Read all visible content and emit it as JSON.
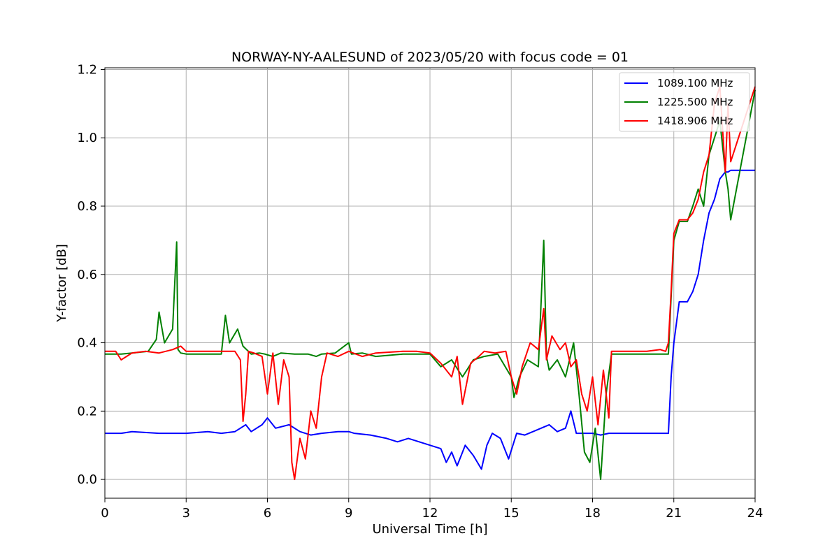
{
  "chart_data": {
    "type": "line",
    "title": "NORWAY-NY-AALESUND of 2023/05/20 with focus code = 01",
    "xlabel": "Universal Time [h]",
    "ylabel": "Y-factor [dB]",
    "xlim": [
      0,
      24
    ],
    "ylim": [
      -0.055,
      1.205
    ],
    "xticks": [
      0,
      3,
      6,
      9,
      12,
      15,
      18,
      21,
      24
    ],
    "yticks": [
      0.0,
      0.2,
      0.4,
      0.6,
      0.8,
      1.0,
      1.2
    ],
    "ytick_labels": [
      "0.0",
      "0.2",
      "0.4",
      "0.6",
      "0.8",
      "1.0",
      "1.2"
    ],
    "grid": true,
    "legend_position": "top-right",
    "series": [
      {
        "name": "1089.100 MHz",
        "color": "#0000ff",
        "x": [
          0.0,
          0.6,
          1.0,
          2.0,
          3.0,
          3.8,
          4.3,
          4.8,
          5.0,
          5.2,
          5.4,
          5.8,
          6.0,
          6.3,
          6.8,
          7.2,
          7.6,
          8.0,
          8.6,
          9.0,
          9.2,
          9.8,
          10.4,
          10.8,
          11.2,
          11.6,
          12.0,
          12.4,
          12.6,
          12.8,
          13.0,
          13.3,
          13.6,
          13.9,
          14.1,
          14.3,
          14.6,
          14.9,
          15.2,
          15.5,
          15.8,
          16.1,
          16.4,
          16.7,
          17.0,
          17.2,
          17.4,
          17.6,
          17.8,
          18.0,
          18.3,
          18.6,
          18.8,
          19.5,
          20.0,
          20.5,
          20.8,
          20.9,
          21.0,
          21.2,
          21.5,
          21.7,
          21.9,
          22.1,
          22.3,
          22.5,
          22.7,
          22.9,
          23.0,
          23.1,
          24.0
        ],
        "y": [
          0.135,
          0.135,
          0.14,
          0.135,
          0.135,
          0.14,
          0.135,
          0.14,
          0.15,
          0.16,
          0.14,
          0.16,
          0.18,
          0.15,
          0.16,
          0.14,
          0.13,
          0.135,
          0.14,
          0.14,
          0.135,
          0.13,
          0.12,
          0.11,
          0.12,
          0.11,
          0.1,
          0.09,
          0.05,
          0.08,
          0.04,
          0.1,
          0.07,
          0.03,
          0.1,
          0.135,
          0.12,
          0.06,
          0.135,
          0.13,
          0.14,
          0.15,
          0.16,
          0.14,
          0.15,
          0.2,
          0.135,
          0.135,
          0.135,
          0.135,
          0.13,
          0.135,
          0.135,
          0.135,
          0.135,
          0.135,
          0.135,
          0.3,
          0.4,
          0.52,
          0.52,
          0.55,
          0.6,
          0.7,
          0.78,
          0.82,
          0.88,
          0.9,
          0.9,
          0.905,
          0.905
        ]
      },
      {
        "name": "1225.500 MHz",
        "color": "#008000",
        "x": [
          0.0,
          0.6,
          1.0,
          1.6,
          1.9,
          2.0,
          2.2,
          2.5,
          2.65,
          2.7,
          2.8,
          3.0,
          3.8,
          4.3,
          4.45,
          4.6,
          4.9,
          5.1,
          5.4,
          5.7,
          5.9,
          6.2,
          6.5,
          7.0,
          7.5,
          7.8,
          8.0,
          8.5,
          9.0,
          9.1,
          9.5,
          10.0,
          11.0,
          11.5,
          12.0,
          12.4,
          12.8,
          13.2,
          13.6,
          14.0,
          14.5,
          15.0,
          15.1,
          15.3,
          15.6,
          16.0,
          16.2,
          16.3,
          16.4,
          16.7,
          17.0,
          17.3,
          17.5,
          17.7,
          17.9,
          18.1,
          18.3,
          18.5,
          18.7,
          19.5,
          20.0,
          20.5,
          20.8,
          21.0,
          21.2,
          21.5,
          21.7,
          21.9,
          22.1,
          22.3,
          22.5,
          22.7,
          22.9,
          23.0,
          23.1,
          24.0
        ],
        "y": [
          0.367,
          0.367,
          0.37,
          0.375,
          0.41,
          0.49,
          0.4,
          0.44,
          0.695,
          0.38,
          0.37,
          0.367,
          0.367,
          0.367,
          0.48,
          0.4,
          0.44,
          0.39,
          0.367,
          0.37,
          0.367,
          0.36,
          0.37,
          0.367,
          0.367,
          0.36,
          0.367,
          0.37,
          0.4,
          0.367,
          0.37,
          0.36,
          0.367,
          0.367,
          0.367,
          0.33,
          0.35,
          0.3,
          0.35,
          0.36,
          0.367,
          0.3,
          0.24,
          0.3,
          0.35,
          0.33,
          0.7,
          0.36,
          0.32,
          0.35,
          0.3,
          0.4,
          0.25,
          0.08,
          0.05,
          0.15,
          0.0,
          0.25,
          0.367,
          0.367,
          0.367,
          0.367,
          0.367,
          0.7,
          0.755,
          0.755,
          0.8,
          0.85,
          0.8,
          0.95,
          1.0,
          1.05,
          0.9,
          0.85,
          0.76,
          1.14
        ]
      },
      {
        "name": "1418.906 MHz",
        "color": "#ff0000",
        "x": [
          0.0,
          0.4,
          0.6,
          0.8,
          1.0,
          1.5,
          2.0,
          2.5,
          2.8,
          3.0,
          3.8,
          4.3,
          4.8,
          5.0,
          5.1,
          5.2,
          5.3,
          5.5,
          5.8,
          6.0,
          6.2,
          6.4,
          6.6,
          6.8,
          6.9,
          7.0,
          7.2,
          7.4,
          7.6,
          7.8,
          8.0,
          8.2,
          8.6,
          9.0,
          9.5,
          10.0,
          11.0,
          11.5,
          12.0,
          12.4,
          12.8,
          13.0,
          13.2,
          13.5,
          13.8,
          14.0,
          14.4,
          14.8,
          15.0,
          15.2,
          15.4,
          15.7,
          16.0,
          16.2,
          16.3,
          16.5,
          16.8,
          17.0,
          17.2,
          17.4,
          17.6,
          17.8,
          18.0,
          18.2,
          18.4,
          18.6,
          18.7,
          19.5,
          20.0,
          20.5,
          20.7,
          20.8,
          20.9,
          21.0,
          21.2,
          21.5,
          21.7,
          21.9,
          22.1,
          22.3,
          22.5,
          22.7,
          22.9,
          23.0,
          23.1,
          24.0
        ],
        "y": [
          0.375,
          0.375,
          0.35,
          0.36,
          0.37,
          0.375,
          0.37,
          0.38,
          0.39,
          0.375,
          0.375,
          0.375,
          0.375,
          0.35,
          0.17,
          0.25,
          0.375,
          0.37,
          0.36,
          0.25,
          0.37,
          0.22,
          0.35,
          0.3,
          0.05,
          0.0,
          0.12,
          0.06,
          0.2,
          0.15,
          0.3,
          0.37,
          0.36,
          0.375,
          0.36,
          0.37,
          0.375,
          0.375,
          0.37,
          0.34,
          0.3,
          0.36,
          0.22,
          0.34,
          0.36,
          0.375,
          0.37,
          0.375,
          0.3,
          0.25,
          0.33,
          0.4,
          0.38,
          0.5,
          0.35,
          0.42,
          0.38,
          0.4,
          0.33,
          0.35,
          0.25,
          0.2,
          0.3,
          0.16,
          0.32,
          0.18,
          0.375,
          0.375,
          0.375,
          0.38,
          0.375,
          0.4,
          0.55,
          0.72,
          0.76,
          0.76,
          0.78,
          0.82,
          0.9,
          0.95,
          1.1,
          1.15,
          0.9,
          1.1,
          0.93,
          1.15
        ]
      }
    ]
  }
}
